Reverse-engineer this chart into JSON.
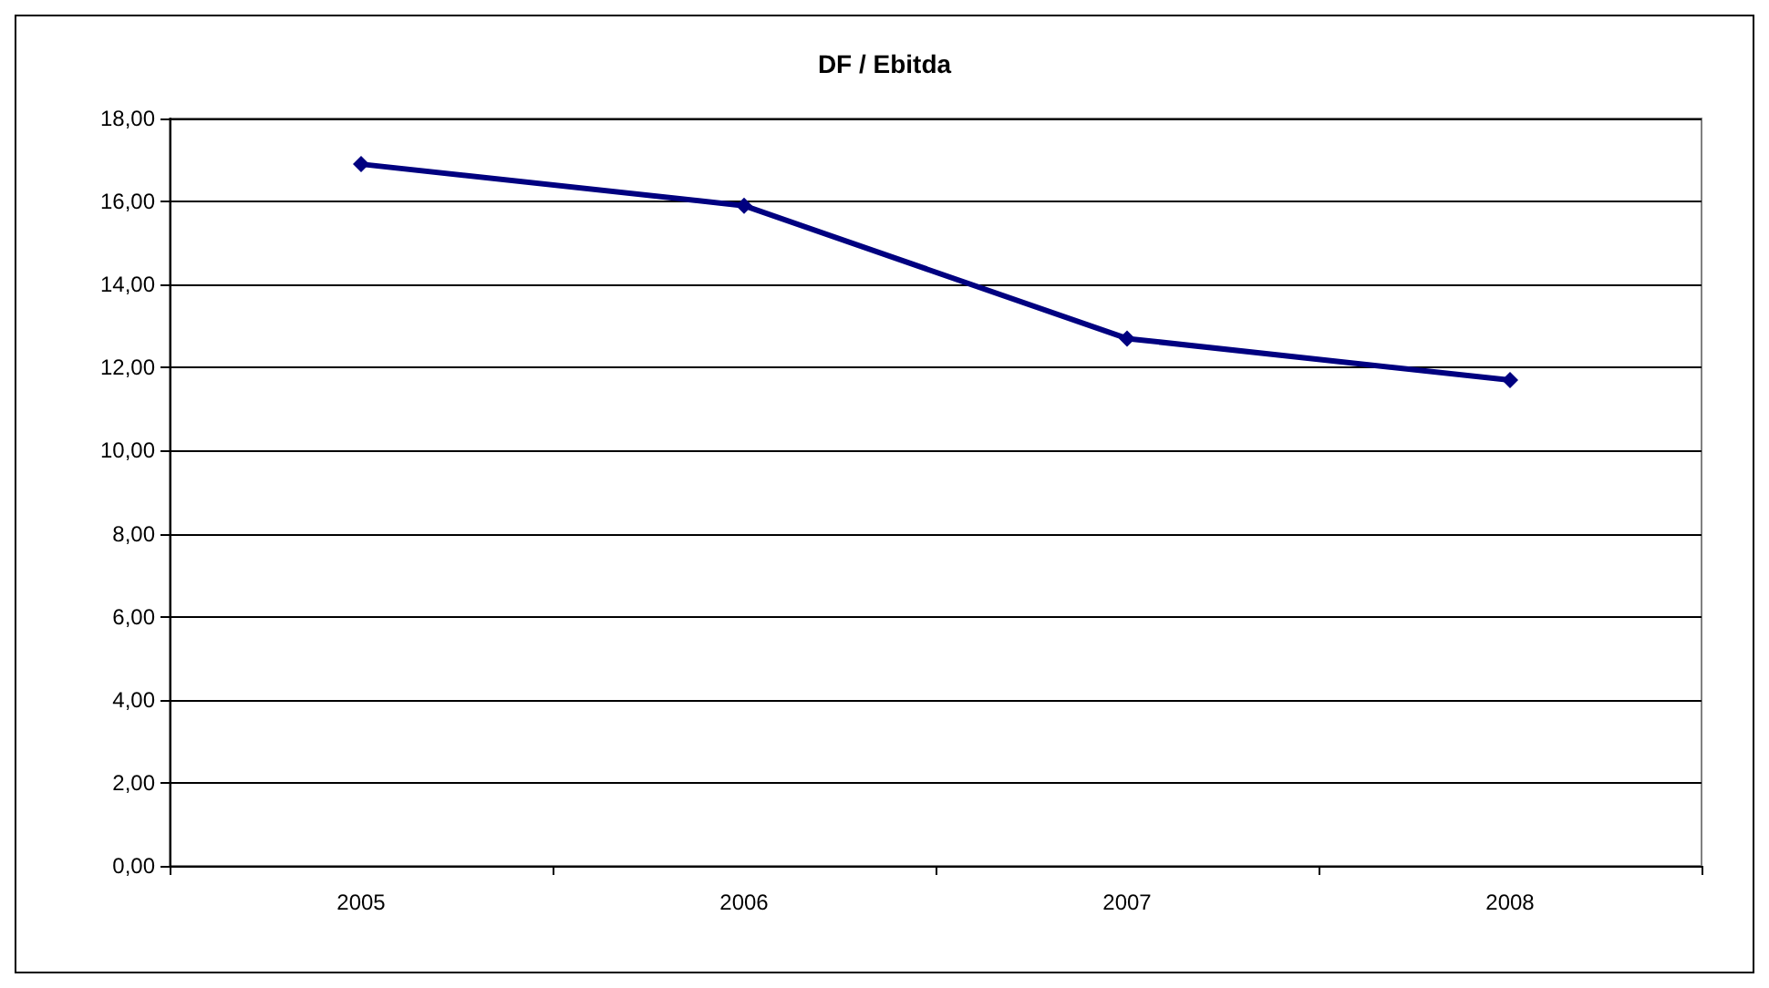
{
  "chart_data": {
    "type": "line",
    "title": "DF / Ebitda",
    "categories": [
      "2005",
      "2006",
      "2007",
      "2008"
    ],
    "series": [
      {
        "color": "#000080",
        "values": [
          16.9,
          15.9,
          12.7,
          11.7
        ]
      }
    ],
    "ylim": [
      0,
      18
    ],
    "yticks": [
      {
        "value": 0,
        "label": "0,00"
      },
      {
        "value": 2,
        "label": "2,00"
      },
      {
        "value": 4,
        "label": "4,00"
      },
      {
        "value": 6,
        "label": "6,00"
      },
      {
        "value": 8,
        "label": "8,00"
      },
      {
        "value": 10,
        "label": "10,00"
      },
      {
        "value": 12,
        "label": "12,00"
      },
      {
        "value": 14,
        "label": "14,00"
      },
      {
        "value": 16,
        "label": "16,00"
      },
      {
        "value": 18,
        "label": "18,00"
      }
    ],
    "grid": "y",
    "marker": "diamond",
    "line_style": "solid"
  }
}
